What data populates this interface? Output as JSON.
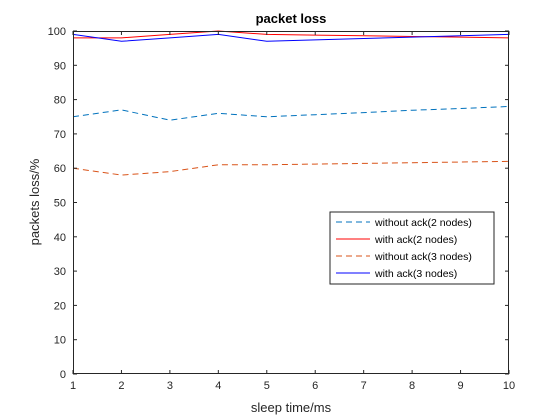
{
  "chart_data": {
    "type": "line",
    "title": "packet loss",
    "xlabel": "sleep time/ms",
    "ylabel": "packets loss/%",
    "xlim": [
      1,
      10
    ],
    "ylim": [
      0,
      100
    ],
    "x_ticks": [
      1,
      2,
      3,
      4,
      5,
      6,
      7,
      8,
      9,
      10
    ],
    "y_ticks": [
      0,
      10,
      20,
      30,
      40,
      50,
      60,
      70,
      80,
      90,
      100
    ],
    "grid": false,
    "legend_position": "right-middle",
    "x": [
      1,
      2,
      3,
      4,
      5,
      6,
      7,
      8,
      9,
      10
    ],
    "series": [
      {
        "name": "without ack(2 nodes)",
        "values": [
          75,
          77,
          74,
          76,
          75,
          75.6,
          76.2,
          76.9,
          77.4,
          78
        ],
        "color": "#0072BD",
        "dash": "dashed"
      },
      {
        "name": "with ack(2 nodes)",
        "values": [
          98,
          98,
          99,
          100,
          99,
          98.8,
          98.6,
          98.4,
          98.2,
          98
        ],
        "color": "#FF0000",
        "dash": "solid"
      },
      {
        "name": "without ack(3 nodes)",
        "values": [
          60,
          58,
          59,
          61,
          61,
          61.2,
          61.4,
          61.6,
          61.8,
          62
        ],
        "color": "#D95319",
        "dash": "dashed"
      },
      {
        "name": "with ack(3 nodes)",
        "values": [
          99,
          97,
          98,
          99,
          97,
          97.4,
          97.8,
          98.2,
          98.6,
          99
        ],
        "color": "#0000FF",
        "dash": "solid"
      }
    ]
  }
}
